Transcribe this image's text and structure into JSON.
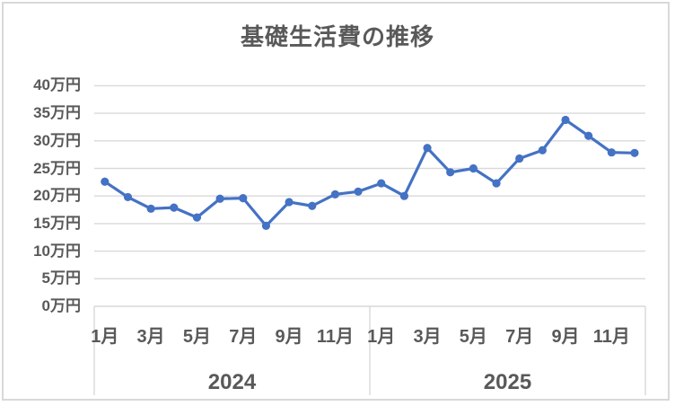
{
  "window": {
    "background_color": "#FFFFFF",
    "border_color": "#D9D9D9"
  },
  "chart_data": {
    "type": "line",
    "title": "基礎生活費の推移",
    "unit": "万円",
    "line_color": "#4472C4",
    "marker": "circle",
    "grid": true,
    "legend": "none",
    "text_color": "#595959",
    "grid_color": "#D9D9D9",
    "ylim": [
      0,
      40
    ],
    "y_tick_step": 5,
    "y_tick_labels_top_to_bottom": [
      "40万円",
      "35万円",
      "30万円",
      "25万円",
      "20万円",
      "15万円",
      "10万円",
      "5万円",
      "0万円"
    ],
    "x_groups": [
      {
        "year": "2024",
        "visible_month_ticks": [
          "1月",
          "3月",
          "5月",
          "7月",
          "9月",
          "11月"
        ],
        "months": [
          "1月",
          "2月",
          "3月",
          "4月",
          "5月",
          "6月",
          "7月",
          "8月",
          "9月",
          "10月",
          "11月",
          "12月"
        ],
        "values": [
          22.6,
          19.8,
          17.7,
          17.9,
          16.1,
          19.5,
          19.6,
          14.6,
          18.9,
          18.2,
          20.3,
          20.8
        ]
      },
      {
        "year": "2025",
        "visible_month_ticks": [
          "1月",
          "3月",
          "5月",
          "7月",
          "9月",
          "11月"
        ],
        "months": [
          "1月",
          "2月",
          "3月",
          "4月",
          "5月",
          "6月",
          "7月",
          "8月",
          "9月",
          "10月",
          "11月",
          "12月"
        ],
        "values": [
          22.3,
          20.0,
          28.7,
          24.3,
          25.0,
          22.3,
          26.8,
          28.3,
          33.8,
          30.9,
          27.9,
          27.8
        ]
      }
    ]
  }
}
